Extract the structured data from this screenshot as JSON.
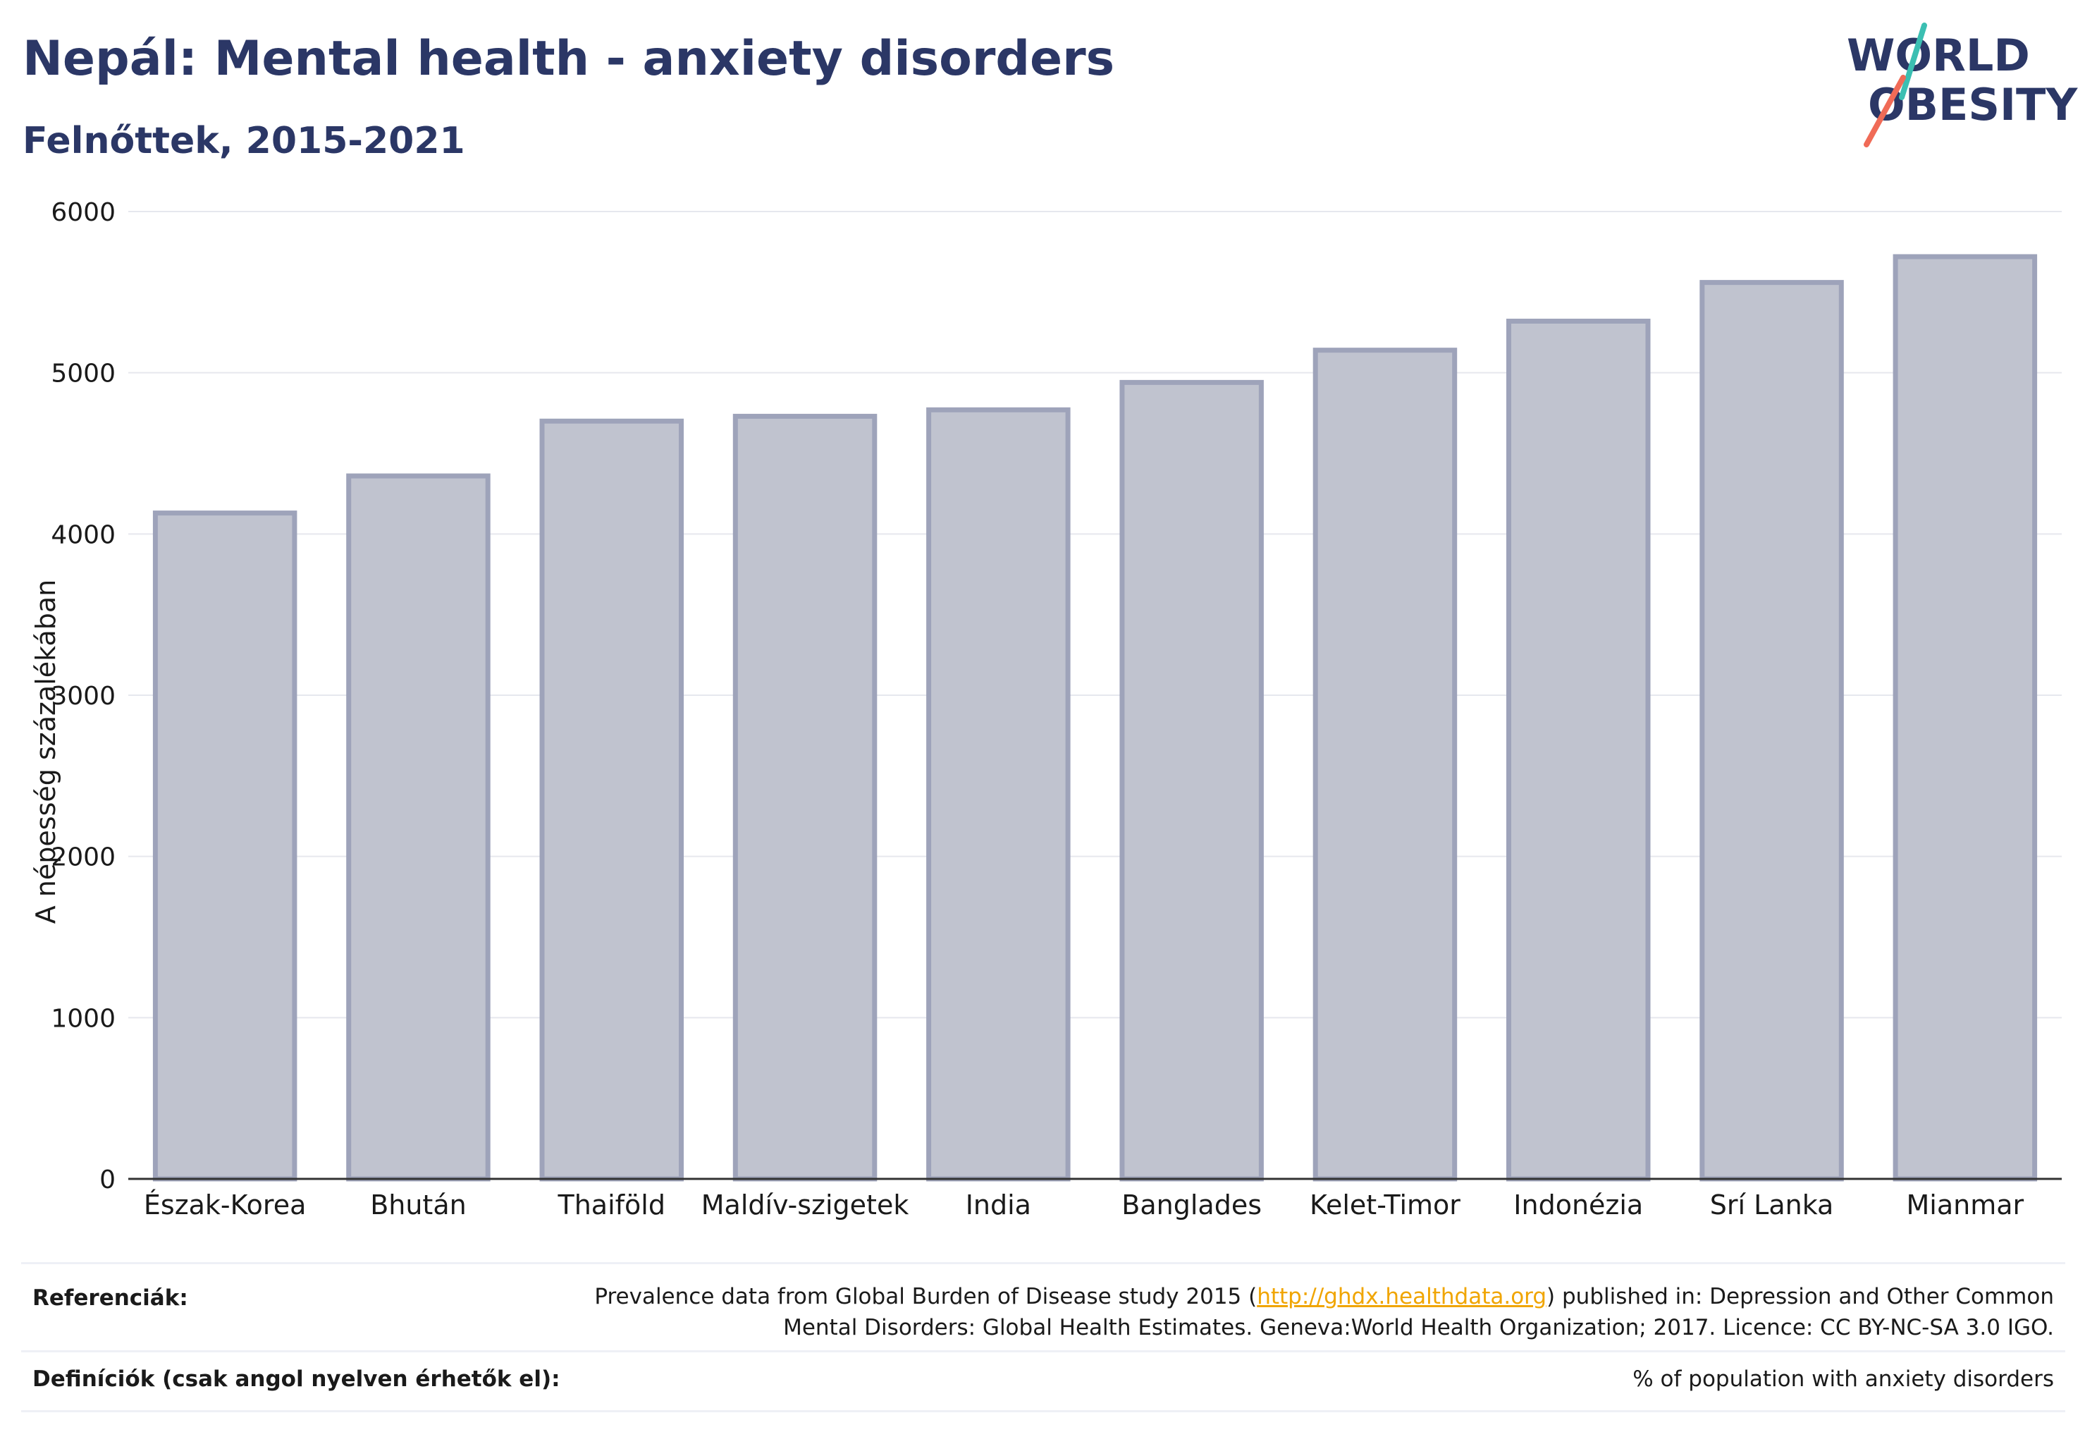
{
  "header": {
    "title": "Nepál: Mental health - anxiety disorders",
    "subtitle": "Felnőttek, 2015-2021"
  },
  "logo": {
    "line1": "WORLD",
    "line2": "OBESITY"
  },
  "chart_data": {
    "type": "bar",
    "categories": [
      "Észak-Korea",
      "Bhután",
      "Thaiföld",
      "Maldív-szigetek",
      "India",
      "Banglades",
      "Kelet-Timor",
      "Indonézia",
      "Srí Lanka",
      "Mianmar"
    ],
    "values": [
      4130,
      4360,
      4700,
      4730,
      4770,
      4940,
      5140,
      5320,
      5560,
      5720
    ],
    "ylabel": "A népesség százalékában",
    "ylim": [
      0,
      6000
    ],
    "yticks": [
      0,
      1000,
      2000,
      3000,
      4000,
      5000,
      6000
    ],
    "grid": true,
    "colors": {
      "bar_fill": "#c0c3cf",
      "bar_stroke": "#9ea3ba",
      "axis": "#333333",
      "grid": "#e6e8ee"
    }
  },
  "footer": {
    "references_label": "Referenciák:",
    "references_before": "Prevalence data from Global Burden of Disease study 2015 (",
    "references_link": "http://ghdx.healthdata.org",
    "references_after": ") published in: Depression and Other Common",
    "references_line2": "Mental Disorders: Global Health Estimates. Geneva:World Health Organization; 2017. Licence: CC BY-NC-SA 3.0 IGO.",
    "definitions_label": "Definíciók (csak angol nyelven érhetők el):",
    "definitions_text": "% of population with anxiety disorders"
  }
}
